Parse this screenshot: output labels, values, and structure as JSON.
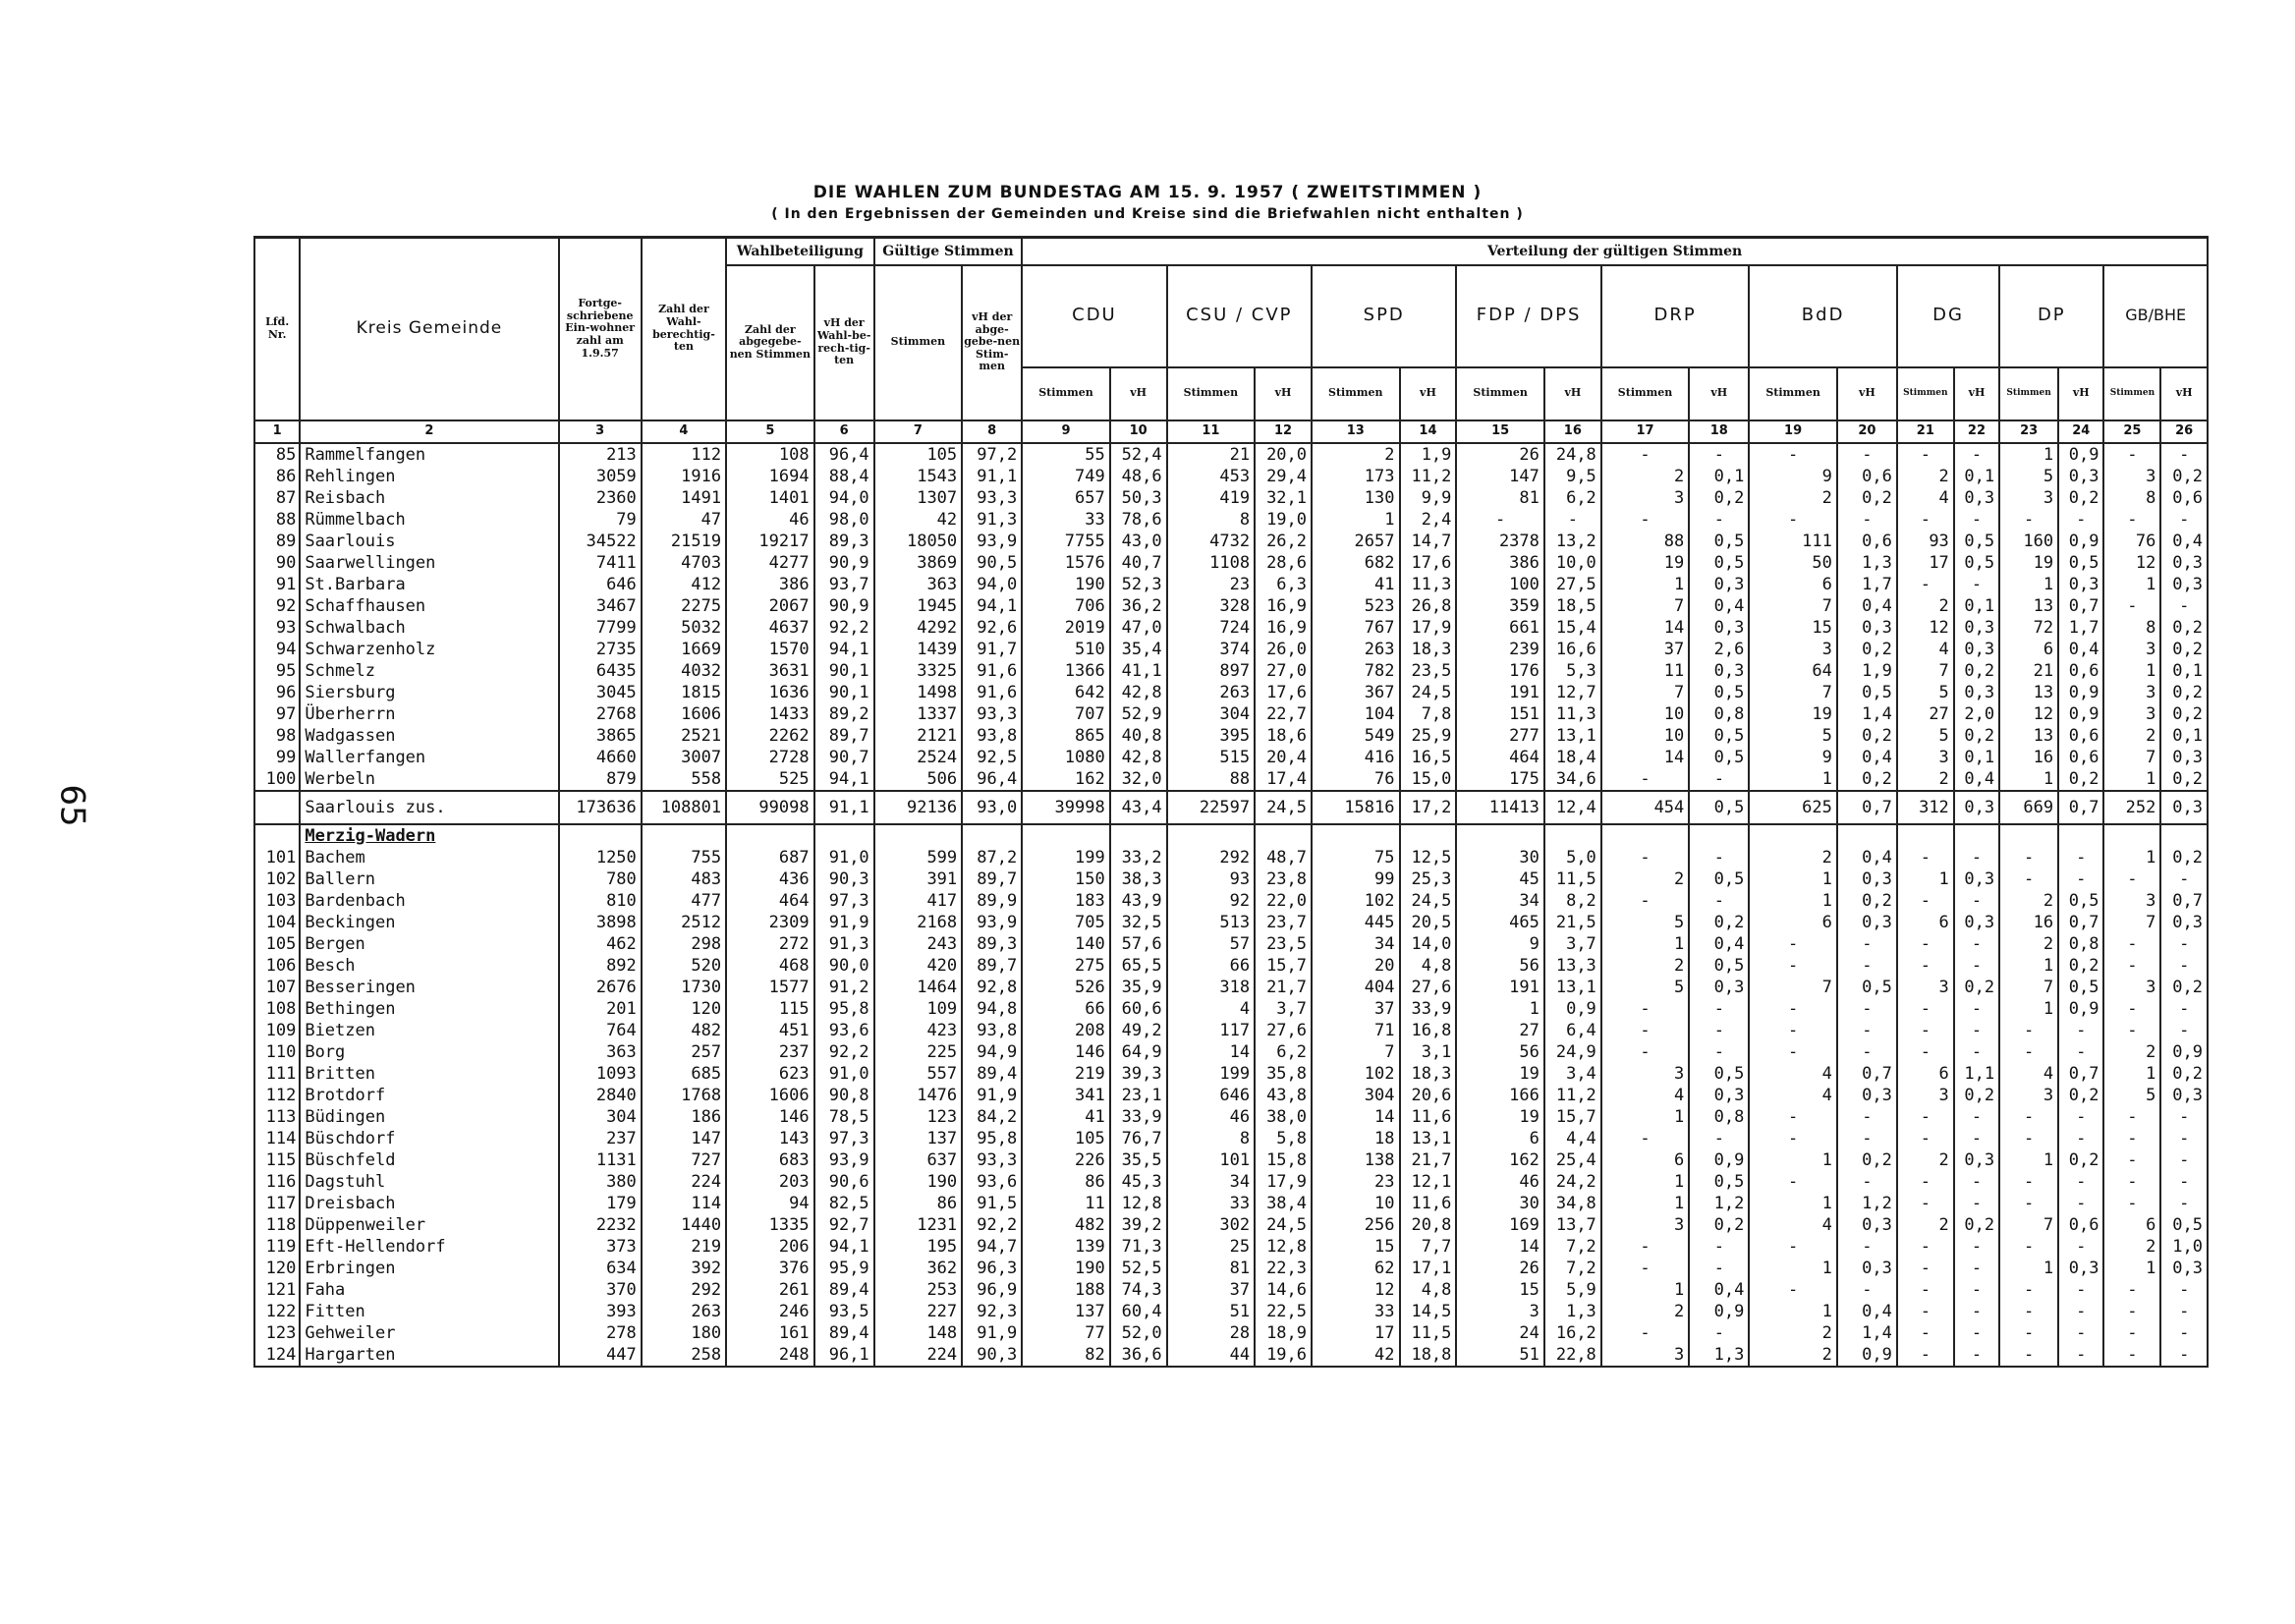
{
  "page": {
    "title": "DIE WAHLEN ZUM BUNDESTAG AM 15. 9. 1957 ( ZWEITSTIMMEN )",
    "subtitle": "( In den Ergebnissen der Gemeinden und Kreise sind die Briefwahlen nicht enthalten )",
    "page_number": "65"
  },
  "header": {
    "lfd": "Lfd. Nr.",
    "kreis": "Kreis Gemeinde",
    "einwohner": "Fortge-schriebene Ein-wohner zahl am 1.9.57",
    "berechtigte": "Zahl der Wahl-berechtig-ten",
    "wahlbeteiligung": "Wahlbeteiligung",
    "gueltige": "Gültige Stimmen",
    "verteilung": "Verteilung der gültigen Stimmen",
    "abgegebene": "Zahl der abgegebe-nen Stimmen",
    "vh_wahlber": "vH der Wahl-be-rech-tig-ten",
    "stimmen": "Stimmen",
    "vh_abgeg": "vH der abge-gebe-nen Stim-men",
    "party_sub_stimmen": "Stimmen",
    "party_sub_vh": "vH",
    "parties": [
      "CDU",
      "CSU / CVP",
      "SPD",
      "FDP / DPS",
      "DRP",
      "BdD",
      "DG",
      "DP",
      "GB/BHE"
    ],
    "col_numbers": [
      "1",
      "2",
      "3",
      "4",
      "5",
      "6",
      "7",
      "8",
      "9",
      "10",
      "11",
      "12",
      "13",
      "14",
      "15",
      "16",
      "17",
      "18",
      "19",
      "20",
      "21",
      "22",
      "23",
      "24",
      "25",
      "26"
    ]
  },
  "rows": [
    {
      "lfd": "85",
      "name": "Rammelfangen",
      "v": [
        "213",
        "112",
        "108",
        "96,4",
        "105",
        "97,2",
        "55",
        "52,4",
        "21",
        "20,0",
        "2",
        "1,9",
        "26",
        "24,8",
        "-",
        "-",
        "-",
        "-",
        "-",
        "-",
        "1",
        "0,9",
        "-",
        "-"
      ]
    },
    {
      "lfd": "86",
      "name": "Rehlingen",
      "v": [
        "3059",
        "1916",
        "1694",
        "88,4",
        "1543",
        "91,1",
        "749",
        "48,6",
        "453",
        "29,4",
        "173",
        "11,2",
        "147",
        "9,5",
        "2",
        "0,1",
        "9",
        "0,6",
        "2",
        "0,1",
        "5",
        "0,3",
        "3",
        "0,2"
      ]
    },
    {
      "lfd": "87",
      "name": "Reisbach",
      "v": [
        "2360",
        "1491",
        "1401",
        "94,0",
        "1307",
        "93,3",
        "657",
        "50,3",
        "419",
        "32,1",
        "130",
        "9,9",
        "81",
        "6,2",
        "3",
        "0,2",
        "2",
        "0,2",
        "4",
        "0,3",
        "3",
        "0,2",
        "8",
        "0,6"
      ]
    },
    {
      "lfd": "88",
      "name": "Rümmelbach",
      "v": [
        "79",
        "47",
        "46",
        "98,0",
        "42",
        "91,3",
        "33",
        "78,6",
        "8",
        "19,0",
        "1",
        "2,4",
        "-",
        "-",
        "-",
        "-",
        "-",
        "-",
        "-",
        "-",
        "-",
        "-",
        "-",
        "-"
      ]
    },
    {
      "lfd": "89",
      "name": "Saarlouis",
      "v": [
        "34522",
        "21519",
        "19217",
        "89,3",
        "18050",
        "93,9",
        "7755",
        "43,0",
        "4732",
        "26,2",
        "2657",
        "14,7",
        "2378",
        "13,2",
        "88",
        "0,5",
        "111",
        "0,6",
        "93",
        "0,5",
        "160",
        "0,9",
        "76",
        "0,4"
      ]
    },
    {
      "lfd": "90",
      "name": "Saarwellingen",
      "v": [
        "7411",
        "4703",
        "4277",
        "90,9",
        "3869",
        "90,5",
        "1576",
        "40,7",
        "1108",
        "28,6",
        "682",
        "17,6",
        "386",
        "10,0",
        "19",
        "0,5",
        "50",
        "1,3",
        "17",
        "0,5",
        "19",
        "0,5",
        "12",
        "0,3"
      ]
    },
    {
      "lfd": "91",
      "name": "St.Barbara",
      "v": [
        "646",
        "412",
        "386",
        "93,7",
        "363",
        "94,0",
        "190",
        "52,3",
        "23",
        "6,3",
        "41",
        "11,3",
        "100",
        "27,5",
        "1",
        "0,3",
        "6",
        "1,7",
        "-",
        "-",
        "1",
        "0,3",
        "1",
        "0,3"
      ]
    },
    {
      "lfd": "92",
      "name": "Schaffhausen",
      "v": [
        "3467",
        "2275",
        "2067",
        "90,9",
        "1945",
        "94,1",
        "706",
        "36,2",
        "328",
        "16,9",
        "523",
        "26,8",
        "359",
        "18,5",
        "7",
        "0,4",
        "7",
        "0,4",
        "2",
        "0,1",
        "13",
        "0,7",
        "-",
        "-"
      ]
    },
    {
      "lfd": "93",
      "name": "Schwalbach",
      "v": [
        "7799",
        "5032",
        "4637",
        "92,2",
        "4292",
        "92,6",
        "2019",
        "47,0",
        "724",
        "16,9",
        "767",
        "17,9",
        "661",
        "15,4",
        "14",
        "0,3",
        "15",
        "0,3",
        "12",
        "0,3",
        "72",
        "1,7",
        "8",
        "0,2"
      ]
    },
    {
      "lfd": "94",
      "name": "Schwarzenholz",
      "v": [
        "2735",
        "1669",
        "1570",
        "94,1",
        "1439",
        "91,7",
        "510",
        "35,4",
        "374",
        "26,0",
        "263",
        "18,3",
        "239",
        "16,6",
        "37",
        "2,6",
        "3",
        "0,2",
        "4",
        "0,3",
        "6",
        "0,4",
        "3",
        "0,2"
      ]
    },
    {
      "lfd": "95",
      "name": "Schmelz",
      "v": [
        "6435",
        "4032",
        "3631",
        "90,1",
        "3325",
        "91,6",
        "1366",
        "41,1",
        "897",
        "27,0",
        "782",
        "23,5",
        "176",
        "5,3",
        "11",
        "0,3",
        "64",
        "1,9",
        "7",
        "0,2",
        "21",
        "0,6",
        "1",
        "0,1"
      ]
    },
    {
      "lfd": "96",
      "name": "Siersburg",
      "v": [
        "3045",
        "1815",
        "1636",
        "90,1",
        "1498",
        "91,6",
        "642",
        "42,8",
        "263",
        "17,6",
        "367",
        "24,5",
        "191",
        "12,7",
        "7",
        "0,5",
        "7",
        "0,5",
        "5",
        "0,3",
        "13",
        "0,9",
        "3",
        "0,2"
      ]
    },
    {
      "lfd": "97",
      "name": "Überherrn",
      "v": [
        "2768",
        "1606",
        "1433",
        "89,2",
        "1337",
        "93,3",
        "707",
        "52,9",
        "304",
        "22,7",
        "104",
        "7,8",
        "151",
        "11,3",
        "10",
        "0,8",
        "19",
        "1,4",
        "27",
        "2,0",
        "12",
        "0,9",
        "3",
        "0,2"
      ]
    },
    {
      "lfd": "98",
      "name": "Wadgassen",
      "v": [
        "3865",
        "2521",
        "2262",
        "89,7",
        "2121",
        "93,8",
        "865",
        "40,8",
        "395",
        "18,6",
        "549",
        "25,9",
        "277",
        "13,1",
        "10",
        "0,5",
        "5",
        "0,2",
        "5",
        "0,2",
        "13",
        "0,6",
        "2",
        "0,1"
      ]
    },
    {
      "lfd": "99",
      "name": "Wallerfangen",
      "v": [
        "4660",
        "3007",
        "2728",
        "90,7",
        "2524",
        "92,5",
        "1080",
        "42,8",
        "515",
        "20,4",
        "416",
        "16,5",
        "464",
        "18,4",
        "14",
        "0,5",
        "9",
        "0,4",
        "3",
        "0,1",
        "16",
        "0,6",
        "7",
        "0,3"
      ]
    },
    {
      "lfd": "100",
      "name": "Werbeln",
      "v": [
        "879",
        "558",
        "525",
        "94,1",
        "506",
        "96,4",
        "162",
        "32,0",
        "88",
        "17,4",
        "76",
        "15,0",
        "175",
        "34,6",
        "-",
        "-",
        "1",
        "0,2",
        "2",
        "0,4",
        "1",
        "0,2",
        "1",
        "0,2"
      ]
    },
    {
      "type": "total",
      "lfd": "",
      "name": "Saarlouis zus.",
      "v": [
        "173636",
        "108801",
        "99098",
        "91,1",
        "92136",
        "93,0",
        "39998",
        "43,4",
        "22597",
        "24,5",
        "15816",
        "17,2",
        "11413",
        "12,4",
        "454",
        "0,5",
        "625",
        "0,7",
        "312",
        "0,3",
        "669",
        "0,7",
        "252",
        "0,3"
      ]
    },
    {
      "type": "section",
      "lfd": "",
      "name": "Merzig-Wadern",
      "v": [
        "",
        "",
        "",
        "",
        "",
        "",
        "",
        "",
        "",
        "",
        "",
        "",
        "",
        "",
        "",
        "",
        "",
        "",
        "",
        "",
        "",
        "",
        "",
        ""
      ]
    },
    {
      "lfd": "101",
      "name": "Bachem",
      "v": [
        "1250",
        "755",
        "687",
        "91,0",
        "599",
        "87,2",
        "199",
        "33,2",
        "292",
        "48,7",
        "75",
        "12,5",
        "30",
        "5,0",
        "-",
        "-",
        "2",
        "0,4",
        "-",
        "-",
        "-",
        "-",
        "1",
        "0,2"
      ]
    },
    {
      "lfd": "102",
      "name": "Ballern",
      "v": [
        "780",
        "483",
        "436",
        "90,3",
        "391",
        "89,7",
        "150",
        "38,3",
        "93",
        "23,8",
        "99",
        "25,3",
        "45",
        "11,5",
        "2",
        "0,5",
        "1",
        "0,3",
        "1",
        "0,3",
        "-",
        "-",
        "-",
        "-"
      ]
    },
    {
      "lfd": "103",
      "name": "Bardenbach",
      "v": [
        "810",
        "477",
        "464",
        "97,3",
        "417",
        "89,9",
        "183",
        "43,9",
        "92",
        "22,0",
        "102",
        "24,5",
        "34",
        "8,2",
        "-",
        "-",
        "1",
        "0,2",
        "-",
        "-",
        "2",
        "0,5",
        "3",
        "0,7"
      ]
    },
    {
      "lfd": "104",
      "name": "Beckingen",
      "v": [
        "3898",
        "2512",
        "2309",
        "91,9",
        "2168",
        "93,9",
        "705",
        "32,5",
        "513",
        "23,7",
        "445",
        "20,5",
        "465",
        "21,5",
        "5",
        "0,2",
        "6",
        "0,3",
        "6",
        "0,3",
        "16",
        "0,7",
        "7",
        "0,3"
      ]
    },
    {
      "lfd": "105",
      "name": "Bergen",
      "v": [
        "462",
        "298",
        "272",
        "91,3",
        "243",
        "89,3",
        "140",
        "57,6",
        "57",
        "23,5",
        "34",
        "14,0",
        "9",
        "3,7",
        "1",
        "0,4",
        "-",
        "-",
        "-",
        "-",
        "2",
        "0,8",
        "-",
        "-"
      ]
    },
    {
      "lfd": "106",
      "name": "Besch",
      "v": [
        "892",
        "520",
        "468",
        "90,0",
        "420",
        "89,7",
        "275",
        "65,5",
        "66",
        "15,7",
        "20",
        "4,8",
        "56",
        "13,3",
        "2",
        "0,5",
        "-",
        "-",
        "-",
        "-",
        "1",
        "0,2",
        "-",
        "-"
      ]
    },
    {
      "lfd": "107",
      "name": "Besseringen",
      "v": [
        "2676",
        "1730",
        "1577",
        "91,2",
        "1464",
        "92,8",
        "526",
        "35,9",
        "318",
        "21,7",
        "404",
        "27,6",
        "191",
        "13,1",
        "5",
        "0,3",
        "7",
        "0,5",
        "3",
        "0,2",
        "7",
        "0,5",
        "3",
        "0,2"
      ]
    },
    {
      "lfd": "108",
      "name": "Bethingen",
      "v": [
        "201",
        "120",
        "115",
        "95,8",
        "109",
        "94,8",
        "66",
        "60,6",
        "4",
        "3,7",
        "37",
        "33,9",
        "1",
        "0,9",
        "-",
        "-",
        "-",
        "-",
        "-",
        "-",
        "1",
        "0,9",
        "-",
        "-"
      ]
    },
    {
      "lfd": "109",
      "name": "Bietzen",
      "v": [
        "764",
        "482",
        "451",
        "93,6",
        "423",
        "93,8",
        "208",
        "49,2",
        "117",
        "27,6",
        "71",
        "16,8",
        "27",
        "6,4",
        "-",
        "-",
        "-",
        "-",
        "-",
        "-",
        "-",
        "-",
        "-",
        "-"
      ]
    },
    {
      "lfd": "110",
      "name": "Borg",
      "v": [
        "363",
        "257",
        "237",
        "92,2",
        "225",
        "94,9",
        "146",
        "64,9",
        "14",
        "6,2",
        "7",
        "3,1",
        "56",
        "24,9",
        "-",
        "-",
        "-",
        "-",
        "-",
        "-",
        "-",
        "-",
        "2",
        "0,9"
      ]
    },
    {
      "lfd": "111",
      "name": "Britten",
      "v": [
        "1093",
        "685",
        "623",
        "91,0",
        "557",
        "89,4",
        "219",
        "39,3",
        "199",
        "35,8",
        "102",
        "18,3",
        "19",
        "3,4",
        "3",
        "0,5",
        "4",
        "0,7",
        "6",
        "1,1",
        "4",
        "0,7",
        "1",
        "0,2"
      ]
    },
    {
      "lfd": "112",
      "name": "Brotdorf",
      "v": [
        "2840",
        "1768",
        "1606",
        "90,8",
        "1476",
        "91,9",
        "341",
        "23,1",
        "646",
        "43,8",
        "304",
        "20,6",
        "166",
        "11,2",
        "4",
        "0,3",
        "4",
        "0,3",
        "3",
        "0,2",
        "3",
        "0,2",
        "5",
        "0,3"
      ]
    },
    {
      "lfd": "113",
      "name": "Büdingen",
      "v": [
        "304",
        "186",
        "146",
        "78,5",
        "123",
        "84,2",
        "41",
        "33,9",
        "46",
        "38,0",
        "14",
        "11,6",
        "19",
        "15,7",
        "1",
        "0,8",
        "-",
        "-",
        "-",
        "-",
        "-",
        "-",
        "-",
        "-"
      ]
    },
    {
      "lfd": "114",
      "name": "Büschdorf",
      "v": [
        "237",
        "147",
        "143",
        "97,3",
        "137",
        "95,8",
        "105",
        "76,7",
        "8",
        "5,8",
        "18",
        "13,1",
        "6",
        "4,4",
        "-",
        "-",
        "-",
        "-",
        "-",
        "-",
        "-",
        "-",
        "-",
        "-"
      ]
    },
    {
      "lfd": "115",
      "name": "Büschfeld",
      "v": [
        "1131",
        "727",
        "683",
        "93,9",
        "637",
        "93,3",
        "226",
        "35,5",
        "101",
        "15,8",
        "138",
        "21,7",
        "162",
        "25,4",
        "6",
        "0,9",
        "1",
        "0,2",
        "2",
        "0,3",
        "1",
        "0,2",
        "-",
        "-"
      ]
    },
    {
      "lfd": "116",
      "name": "Dagstuhl",
      "v": [
        "380",
        "224",
        "203",
        "90,6",
        "190",
        "93,6",
        "86",
        "45,3",
        "34",
        "17,9",
        "23",
        "12,1",
        "46",
        "24,2",
        "1",
        "0,5",
        "-",
        "-",
        "-",
        "-",
        "-",
        "-",
        "-",
        "-"
      ]
    },
    {
      "lfd": "117",
      "name": "Dreisbach",
      "v": [
        "179",
        "114",
        "94",
        "82,5",
        "86",
        "91,5",
        "11",
        "12,8",
        "33",
        "38,4",
        "10",
        "11,6",
        "30",
        "34,8",
        "1",
        "1,2",
        "1",
        "1,2",
        "-",
        "-",
        "-",
        "-",
        "-",
        "-"
      ]
    },
    {
      "lfd": "118",
      "name": "Düppenweiler",
      "v": [
        "2232",
        "1440",
        "1335",
        "92,7",
        "1231",
        "92,2",
        "482",
        "39,2",
        "302",
        "24,5",
        "256",
        "20,8",
        "169",
        "13,7",
        "3",
        "0,2",
        "4",
        "0,3",
        "2",
        "0,2",
        "7",
        "0,6",
        "6",
        "0,5"
      ]
    },
    {
      "lfd": "119",
      "name": "Eft-Hellendorf",
      "v": [
        "373",
        "219",
        "206",
        "94,1",
        "195",
        "94,7",
        "139",
        "71,3",
        "25",
        "12,8",
        "15",
        "7,7",
        "14",
        "7,2",
        "-",
        "-",
        "-",
        "-",
        "-",
        "-",
        "-",
        "-",
        "2",
        "1,0"
      ]
    },
    {
      "lfd": "120",
      "name": "Erbringen",
      "v": [
        "634",
        "392",
        "376",
        "95,9",
        "362",
        "96,3",
        "190",
        "52,5",
        "81",
        "22,3",
        "62",
        "17,1",
        "26",
        "7,2",
        "-",
        "-",
        "1",
        "0,3",
        "-",
        "-",
        "1",
        "0,3",
        "1",
        "0,3"
      ]
    },
    {
      "lfd": "121",
      "name": "Faha",
      "v": [
        "370",
        "292",
        "261",
        "89,4",
        "253",
        "96,9",
        "188",
        "74,3",
        "37",
        "14,6",
        "12",
        "4,8",
        "15",
        "5,9",
        "1",
        "0,4",
        "-",
        "-",
        "-",
        "-",
        "-",
        "-",
        "-",
        "-"
      ]
    },
    {
      "lfd": "122",
      "name": "Fitten",
      "v": [
        "393",
        "263",
        "246",
        "93,5",
        "227",
        "92,3",
        "137",
        "60,4",
        "51",
        "22,5",
        "33",
        "14,5",
        "3",
        "1,3",
        "2",
        "0,9",
        "1",
        "0,4",
        "-",
        "-",
        "-",
        "-",
        "-",
        "-"
      ]
    },
    {
      "lfd": "123",
      "name": "Gehweiler",
      "v": [
        "278",
        "180",
        "161",
        "89,4",
        "148",
        "91,9",
        "77",
        "52,0",
        "28",
        "18,9",
        "17",
        "11,5",
        "24",
        "16,2",
        "-",
        "-",
        "2",
        "1,4",
        "-",
        "-",
        "-",
        "-",
        "-",
        "-"
      ]
    },
    {
      "lfd": "124",
      "name": "Hargarten",
      "v": [
        "447",
        "258",
        "248",
        "96,1",
        "224",
        "90,3",
        "82",
        "36,6",
        "44",
        "19,6",
        "42",
        "18,8",
        "51",
        "22,8",
        "3",
        "1,3",
        "2",
        "0,9",
        "-",
        "-",
        "-",
        "-",
        "-",
        "-"
      ]
    }
  ]
}
